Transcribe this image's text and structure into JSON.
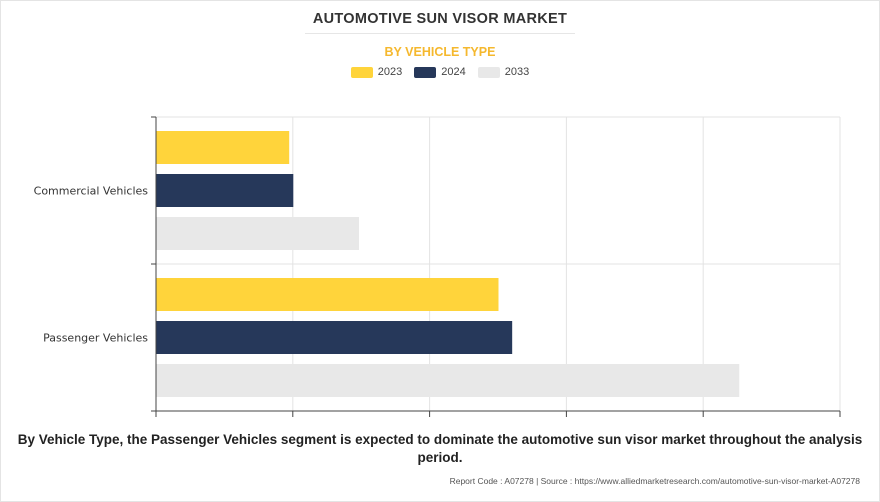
{
  "header": {
    "title": "AUTOMOTIVE SUN VISOR MARKET",
    "subtitle": "BY VEHICLE TYPE"
  },
  "chart_data": {
    "type": "bar",
    "orientation": "horizontal",
    "categories": [
      "Commercial Vehicles",
      "Passenger Vehicles"
    ],
    "series": [
      {
        "name": "2023",
        "color": "#ffd43b",
        "values": [
          0.97,
          2.5
        ]
      },
      {
        "name": "2024",
        "color": "#26385a",
        "values": [
          1.0,
          2.6
        ]
      },
      {
        "name": "2033",
        "color": "#e8e8e8",
        "values": [
          1.48,
          4.26
        ]
      }
    ],
    "xlim": [
      0,
      5
    ],
    "grid": true,
    "legend_position": "top",
    "title": "AUTOMOTIVE SUN VISOR MARKET",
    "subtitle": "BY VEHICLE TYPE",
    "xlabel": "",
    "ylabel": ""
  },
  "summary": "By Vehicle Type, the Passenger Vehicles segment is expected to dominate the automotive sun visor market throughout the analysis period.",
  "footer": "Report Code : A07278  |  Source : https://www.alliedmarketresearch.com/automotive-sun-visor-market-A07278"
}
